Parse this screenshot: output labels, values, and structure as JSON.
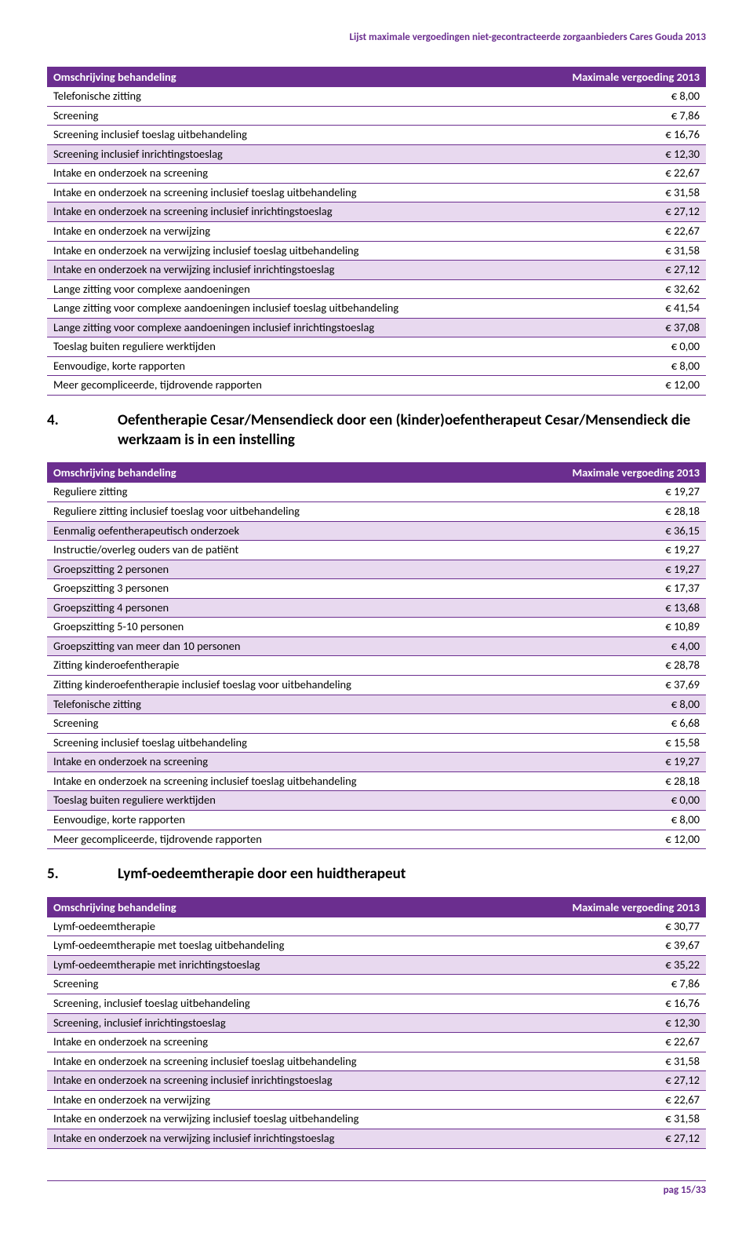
{
  "page_header": "Lijst maximale vergoedingen niet-gecontracteerde zorgaanbieders Cares Gouda 2013",
  "table_header_desc": "Omschrijving behandeling",
  "table_header_amount": "Maximale vergoeding 2013",
  "table1": {
    "rows": [
      {
        "desc": "Telefonische zitting",
        "amount": "€ 8,00",
        "shade": false
      },
      {
        "desc": "Screening",
        "amount": "€  7,86",
        "shade": false
      },
      {
        "desc": "Screening inclusief toeslag uitbehandeling",
        "amount": "€ 16,76",
        "shade": false
      },
      {
        "desc": "Screening inclusief inrichtingstoeslag",
        "amount": "€ 12,30",
        "shade": true
      },
      {
        "desc": "Intake en onderzoek na screening",
        "amount": "€ 22,67",
        "shade": false
      },
      {
        "desc": "Intake en onderzoek na screening inclusief toeslag uitbehandeling",
        "amount": "€ 31,58",
        "shade": false
      },
      {
        "desc": "Intake en onderzoek na screening inclusief inrichtingstoeslag",
        "amount": "€ 27,12",
        "shade": true
      },
      {
        "desc": "Intake en onderzoek na verwijzing",
        "amount": "€ 22,67",
        "shade": false
      },
      {
        "desc": "Intake en onderzoek na verwijzing inclusief toeslag uitbehandeling",
        "amount": "€ 31,58",
        "shade": false
      },
      {
        "desc": "Intake en onderzoek na verwijzing inclusief inrichtingstoeslag",
        "amount": "€ 27,12",
        "shade": true
      },
      {
        "desc": "Lange zitting voor complexe aandoeningen",
        "amount": "€ 32,62",
        "shade": false
      },
      {
        "desc": "Lange zitting voor complexe aandoeningen inclusief toeslag uitbehandeling",
        "amount": "€ 41,54",
        "shade": false
      },
      {
        "desc": "Lange zitting voor complexe aandoeningen inclusief inrichtingstoeslag",
        "amount": "€ 37,08",
        "shade": true
      },
      {
        "desc": "Toeslag buiten reguliere werktijden",
        "amount": "€ 0,00",
        "shade": false
      },
      {
        "desc": "Eenvoudige, korte rapporten",
        "amount": "€ 8,00",
        "shade": false
      },
      {
        "desc": "Meer gecompliceerde, tijdrovende rapporten",
        "amount": "€ 12,00",
        "shade": false
      }
    ]
  },
  "section4": {
    "num": "4.",
    "title": "Oefentherapie Cesar/Mensendieck door een (kinder)oefentherapeut Cesar/Mensendieck die werkzaam is in een instelling"
  },
  "table2": {
    "rows": [
      {
        "desc": "Reguliere zitting",
        "amount": "€ 19,27",
        "shade": false
      },
      {
        "desc": "Reguliere zitting inclusief toeslag voor uitbehandeling",
        "amount": "€ 28,18",
        "shade": false
      },
      {
        "desc": "Eenmalig oefentherapeutisch onderzoek",
        "amount": "€ 36,15",
        "shade": true
      },
      {
        "desc": "Instructie/overleg ouders van de patiënt",
        "amount": "€ 19,27",
        "shade": false
      },
      {
        "desc": "Groepszitting 2 personen",
        "amount": "€ 19,27",
        "shade": true
      },
      {
        "desc": "Groepszitting 3 personen",
        "amount": "€ 17,37",
        "shade": false
      },
      {
        "desc": "Groepszitting 4 personen",
        "amount": "€ 13,68",
        "shade": true
      },
      {
        "desc": "Groepszitting 5-10 personen",
        "amount": "€ 10,89",
        "shade": false
      },
      {
        "desc": "Groepszitting van meer dan 10 personen",
        "amount": "€ 4,00",
        "shade": true
      },
      {
        "desc": "Zitting kinderoefentherapie",
        "amount": "€ 28,78",
        "shade": false
      },
      {
        "desc": "Zitting kinderoefentherapie inclusief toeslag voor uitbehandeling",
        "amount": "€ 37,69",
        "shade": false
      },
      {
        "desc": "Telefonische zitting",
        "amount": "€ 8,00",
        "shade": true
      },
      {
        "desc": "Screening",
        "amount": "€  6,68",
        "shade": false
      },
      {
        "desc": "Screening inclusief toeslag uitbehandeling",
        "amount": "€ 15,58",
        "shade": false
      },
      {
        "desc": "Intake en onderzoek na screening",
        "amount": "€ 19,27",
        "shade": true
      },
      {
        "desc": "Intake en onderzoek na screening inclusief toeslag uitbehandeling",
        "amount": "€ 28,18",
        "shade": false
      },
      {
        "desc": "Toeslag buiten reguliere werktijden",
        "amount": "€ 0,00",
        "shade": true
      },
      {
        "desc": "Eenvoudige, korte rapporten",
        "amount": "€ 8,00",
        "shade": false
      },
      {
        "desc": "Meer gecompliceerde, tijdrovende rapporten",
        "amount": "€ 12,00",
        "shade": false
      }
    ]
  },
  "section5": {
    "num": "5.",
    "title": "Lymf-oedeemtherapie door een huidtherapeut"
  },
  "table3": {
    "rows": [
      {
        "desc": "Lymf-oedeemtherapie",
        "amount": "€ 30,77",
        "shade": false
      },
      {
        "desc": "Lymf-oedeemtherapie met toeslag uitbehandeling",
        "amount": "€ 39,67",
        "shade": false
      },
      {
        "desc": "Lymf-oedeemtherapie met inrichtingstoeslag",
        "amount": "€ 35,22",
        "shade": true
      },
      {
        "desc": "Screening",
        "amount": "€ 7,86",
        "shade": false
      },
      {
        "desc": "Screening, inclusief toeslag uitbehandeling",
        "amount": "€ 16,76",
        "shade": false
      },
      {
        "desc": "Screening, inclusief inrichtingstoeslag",
        "amount": "€  12,30",
        "shade": true
      },
      {
        "desc": "Intake en onderzoek na screening",
        "amount": "€ 22,67",
        "shade": false
      },
      {
        "desc": "Intake en onderzoek na screening inclusief toeslag uitbehandeling",
        "amount": "€ 31,58",
        "shade": false
      },
      {
        "desc": "Intake en onderzoek na screening inclusief inrichtingstoeslag",
        "amount": "€ 27,12",
        "shade": true
      },
      {
        "desc": "Intake en onderzoek na verwijzing",
        "amount": "€ 22,67",
        "shade": false
      },
      {
        "desc": "Intake en onderzoek na verwijzing inclusief toeslag uitbehandeling",
        "amount": "€ 31,58",
        "shade": false
      },
      {
        "desc": "Intake en onderzoek na verwijzing inclusief inrichtingstoeslag",
        "amount": "€ 27,12",
        "shade": true
      }
    ]
  },
  "footer": "pag 15/33"
}
